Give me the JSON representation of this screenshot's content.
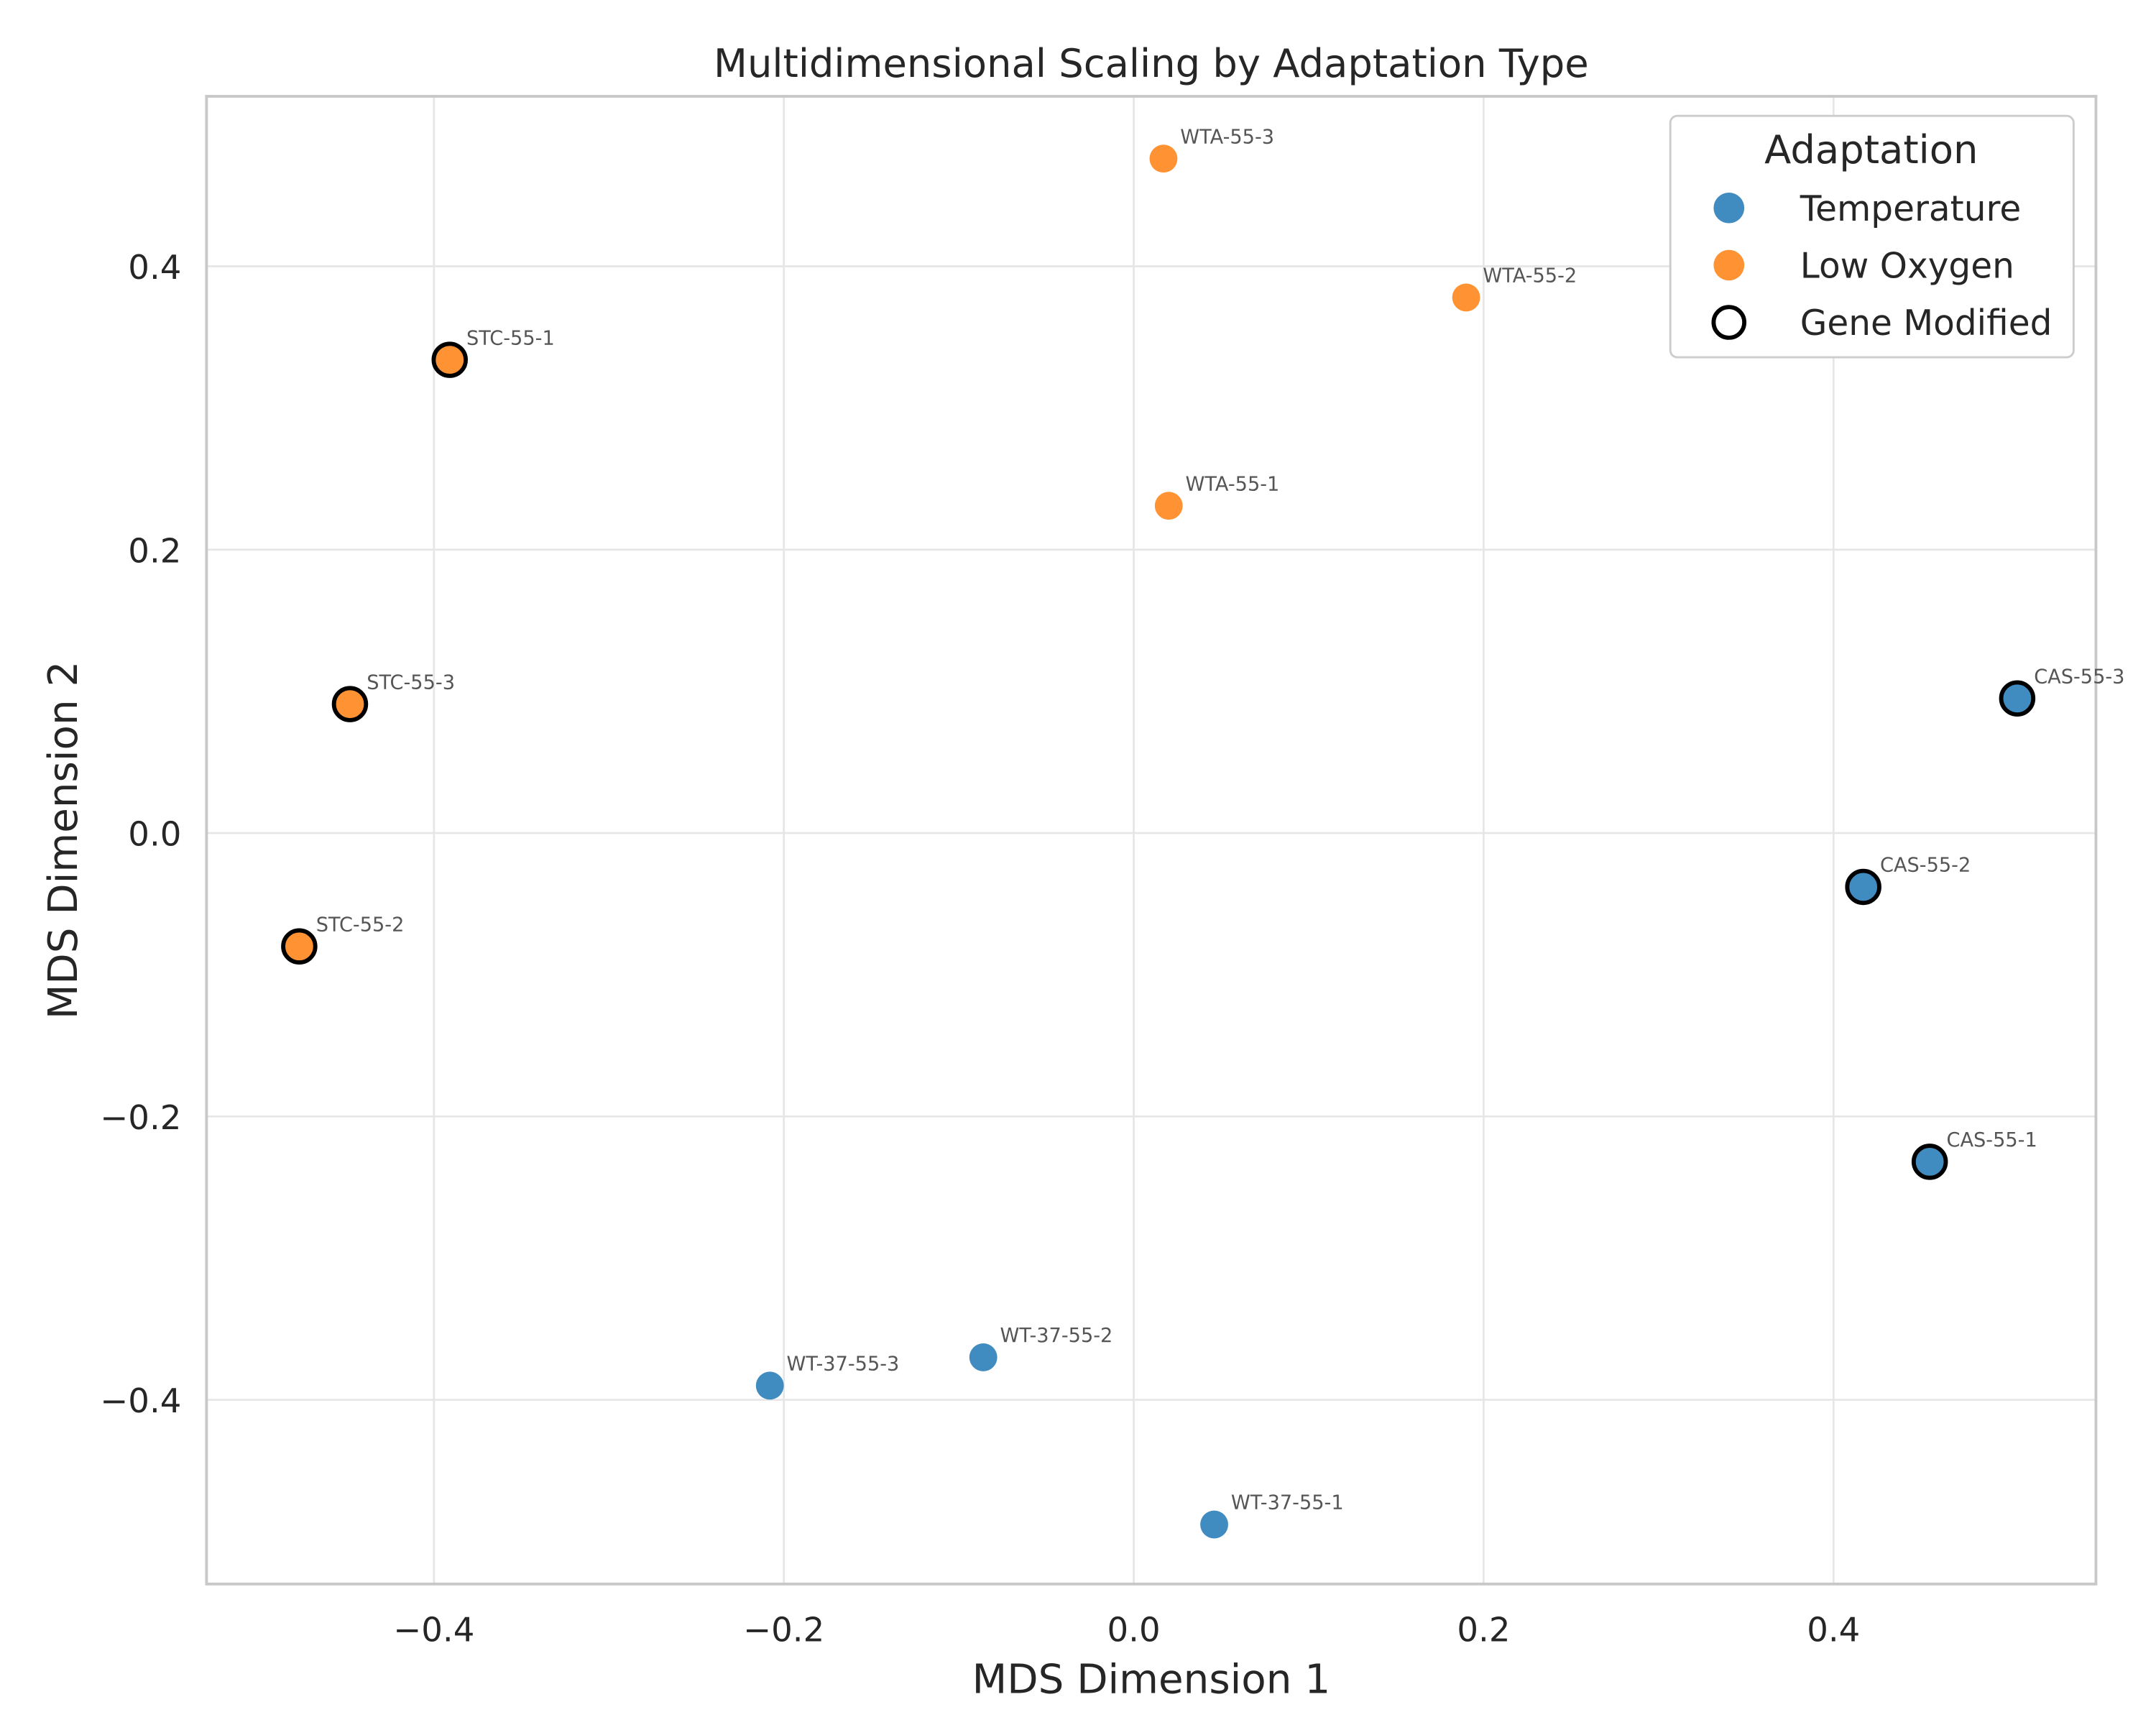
{
  "chart_data": {
    "type": "scatter",
    "title": "Multidimensional Scaling by Adaptation Type",
    "xlabel": "MDS Dimension 1",
    "ylabel": "MDS Dimension 2",
    "xlim": [
      -0.53,
      0.55
    ],
    "ylim": [
      -0.53,
      0.52
    ],
    "xticks": [
      -0.4,
      -0.2,
      0.0,
      0.2,
      0.4
    ],
    "yticks": [
      -0.4,
      -0.2,
      0.0,
      0.2,
      0.4
    ],
    "xtick_labels": [
      "−0.4",
      "−0.2",
      "0.0",
      "0.2",
      "0.4"
    ],
    "ytick_labels": [
      "−0.4",
      "−0.2",
      "0.0",
      "0.2",
      "0.4"
    ],
    "grid": true,
    "legend": {
      "title": "Adaptation",
      "placement": "top-right",
      "entries": [
        {
          "label": "Temperature",
          "color": "#1f77b4",
          "style": "filled"
        },
        {
          "label": "Low Oxygen",
          "color": "#ff7f0e",
          "style": "filled"
        },
        {
          "label": "Gene Modified",
          "color": "#000000",
          "style": "outline"
        }
      ]
    },
    "series": [
      {
        "name": "Temperature",
        "color": "#1f77b4",
        "points": [
          {
            "label": "WT-37-55-1",
            "x": 0.046,
            "y": -0.488,
            "gene_modified": false
          },
          {
            "label": "WT-37-55-2",
            "x": -0.086,
            "y": -0.37,
            "gene_modified": false
          },
          {
            "label": "WT-37-55-3",
            "x": -0.208,
            "y": -0.39,
            "gene_modified": false
          },
          {
            "label": "CAS-55-1",
            "x": 0.455,
            "y": -0.232,
            "gene_modified": true
          },
          {
            "label": "CAS-55-2",
            "x": 0.417,
            "y": -0.038,
            "gene_modified": true
          },
          {
            "label": "CAS-55-3",
            "x": 0.505,
            "y": 0.095,
            "gene_modified": true
          }
        ]
      },
      {
        "name": "Low Oxygen",
        "color": "#ff7f0e",
        "points": [
          {
            "label": "WTA-55-1",
            "x": 0.02,
            "y": 0.231,
            "gene_modified": false
          },
          {
            "label": "WTA-55-2",
            "x": 0.19,
            "y": 0.378,
            "gene_modified": false
          },
          {
            "label": "WTA-55-3",
            "x": 0.017,
            "y": 0.476,
            "gene_modified": false
          },
          {
            "label": "STC-55-1",
            "x": -0.391,
            "y": 0.334,
            "gene_modified": true
          },
          {
            "label": "STC-55-2",
            "x": -0.477,
            "y": -0.08,
            "gene_modified": true
          },
          {
            "label": "STC-55-3",
            "x": -0.448,
            "y": 0.091,
            "gene_modified": true
          }
        ]
      }
    ]
  }
}
